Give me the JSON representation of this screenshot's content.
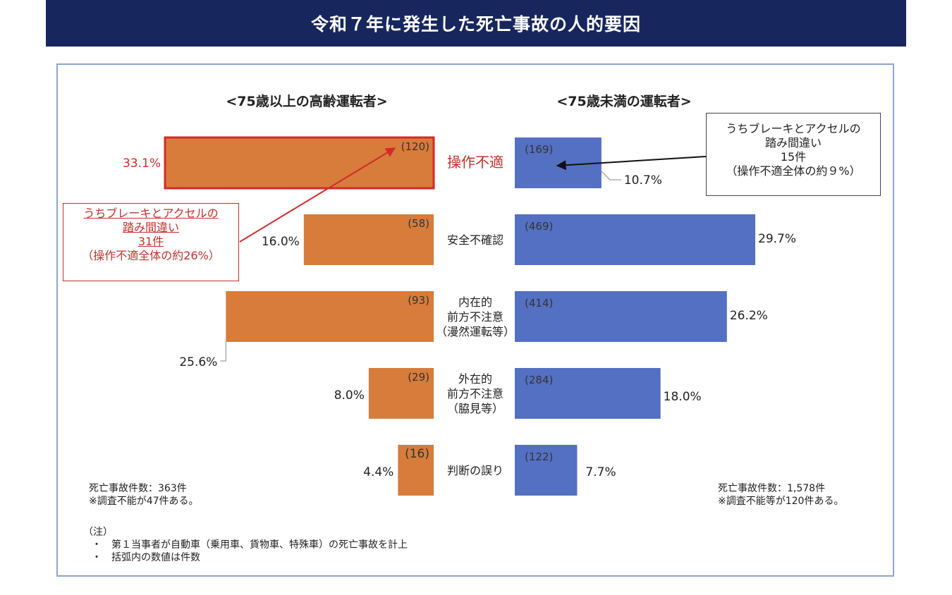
{
  "title": "令和７年に発生した死亡事故の人的要因",
  "chart_data": {
    "type": "bar",
    "orientation": "horizontal-butterfly",
    "categories": [
      [
        "操作不適"
      ],
      [
        "安全不確認"
      ],
      [
        "内在的",
        "前方不注意",
        "（漫然運転等）"
      ],
      [
        "外在的",
        "前方不注意",
        "（脇見等）"
      ],
      [
        "判断の誤り"
      ]
    ],
    "series": [
      {
        "name": "<75歳以上の高齢運転者>",
        "color": "#d77c3a",
        "percent_labels": [
          "33.1%",
          "16.0%",
          "25.6%",
          "8.0%",
          "4.4%"
        ],
        "percent": [
          33.1,
          16.0,
          25.6,
          8.0,
          4.4
        ],
        "count_labels": [
          "(120)",
          "(58)",
          "(93)",
          "(29)",
          "(16)"
        ],
        "counts": [
          120,
          58,
          93,
          29,
          16
        ]
      },
      {
        "name": "<75歳未満の運転者>",
        "color": "#5470c3",
        "percent_labels": [
          "10.7%",
          "29.7%",
          "26.2%",
          "18.0%",
          "7.7%"
        ],
        "percent": [
          10.7,
          29.7,
          26.2,
          18.0,
          7.7
        ],
        "count_labels": [
          "(169)",
          "(469)",
          "(414)",
          "(284)",
          "(122)"
        ],
        "counts": [
          169,
          469,
          414,
          284,
          122
        ]
      }
    ],
    "highlight": {
      "category_index": 0,
      "series_index": 0,
      "color": "#d42a2a"
    }
  },
  "callouts": {
    "left": {
      "line1": "うちブレーキとアクセルの",
      "line2": "踏み間違い",
      "line3": "31件",
      "line4": "（操作不適全体の約26%）"
    },
    "right": {
      "line1": "うちブレーキとアクセルの",
      "line2": "踏み間違い",
      "line3": "15件",
      "line4": "（操作不適全体の約９%）"
    }
  },
  "notes": {
    "left_total": "死亡事故件数：363件",
    "left_unknown": "※調査不能が47件ある。",
    "right_total": "死亡事故件数：1,578件",
    "right_unknown": "※調査不能等が120件ある。",
    "footnote_head": "（注）",
    "footnote_1": "・　第１当事者が自動車（乗用車、貨物車、特殊車）の死亡事故を計上",
    "footnote_2": "・　括弧内の数値は件数"
  }
}
